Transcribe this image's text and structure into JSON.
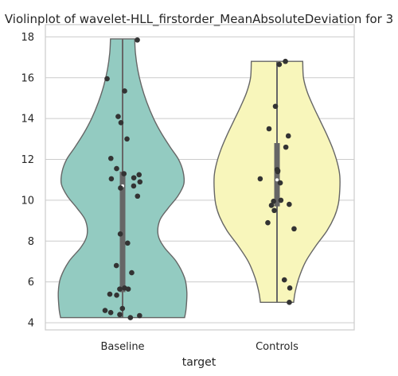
{
  "chart_data": {
    "type": "violin",
    "title": "Violinplot of wavelet-HLL_firstorder_MeanAbsoluteDeviation for 3",
    "xlabel": "target",
    "ylabel": "",
    "categories": [
      "Baseline",
      "Controls"
    ],
    "ylim": [
      3.65,
      18.6
    ],
    "yticks": [
      4,
      6,
      8,
      10,
      12,
      14,
      16,
      18
    ],
    "ytick_labels": [
      "4",
      "6",
      "8",
      "10",
      "12",
      "14",
      "16",
      "18"
    ],
    "grid": true,
    "colors": {
      "Baseline": "#93cbc1",
      "Controls": "#f8f6bb"
    },
    "series": [
      {
        "category": "Baseline",
        "range": [
          4.25,
          17.9
        ],
        "iqr": [
          5.5,
          11.4
        ],
        "median": 10.7,
        "points": [
          17.85,
          15.95,
          15.35,
          14.1,
          13.8,
          13.0,
          12.05,
          11.55,
          11.3,
          11.25,
          11.1,
          11.05,
          10.9,
          10.7,
          10.6,
          10.2,
          8.35,
          7.9,
          6.8,
          6.45,
          5.7,
          5.65,
          5.65,
          5.4,
          5.35,
          4.7,
          4.6,
          4.5,
          4.4,
          4.35,
          4.25
        ],
        "density": [
          [
            4.25,
            0.82
          ],
          [
            4.7,
            0.84
          ],
          [
            5.5,
            0.85
          ],
          [
            6.2,
            0.82
          ],
          [
            7.0,
            0.71
          ],
          [
            7.7,
            0.55
          ],
          [
            8.3,
            0.47
          ],
          [
            9.0,
            0.49
          ],
          [
            9.6,
            0.6
          ],
          [
            10.2,
            0.73
          ],
          [
            10.8,
            0.81
          ],
          [
            11.4,
            0.8
          ],
          [
            12.0,
            0.74
          ],
          [
            12.6,
            0.63
          ],
          [
            13.3,
            0.51
          ],
          [
            14.0,
            0.41
          ],
          [
            14.8,
            0.32
          ],
          [
            15.6,
            0.25
          ],
          [
            16.4,
            0.2
          ],
          [
            17.2,
            0.17
          ],
          [
            17.9,
            0.16
          ]
        ]
      },
      {
        "category": "Controls",
        "range": [
          5.0,
          16.8
        ],
        "iqr": [
          9.7,
          12.8
        ],
        "median": 11.0,
        "points": [
          16.8,
          16.65,
          14.6,
          13.5,
          13.15,
          12.6,
          11.5,
          11.45,
          11.4,
          11.05,
          10.85,
          10.0,
          9.95,
          9.8,
          9.75,
          9.5,
          8.9,
          8.6,
          6.1,
          5.7,
          5.0
        ],
        "density": [
          [
            5.0,
            0.22
          ],
          [
            5.5,
            0.24
          ],
          [
            6.2,
            0.29
          ],
          [
            7.0,
            0.38
          ],
          [
            7.8,
            0.52
          ],
          [
            8.5,
            0.66
          ],
          [
            9.2,
            0.76
          ],
          [
            9.8,
            0.81
          ],
          [
            10.5,
            0.83
          ],
          [
            11.2,
            0.83
          ],
          [
            11.8,
            0.8
          ],
          [
            12.5,
            0.74
          ],
          [
            13.2,
            0.66
          ],
          [
            13.9,
            0.57
          ],
          [
            14.6,
            0.48
          ],
          [
            15.3,
            0.4
          ],
          [
            16.0,
            0.35
          ],
          [
            16.8,
            0.34
          ]
        ]
      }
    ]
  }
}
